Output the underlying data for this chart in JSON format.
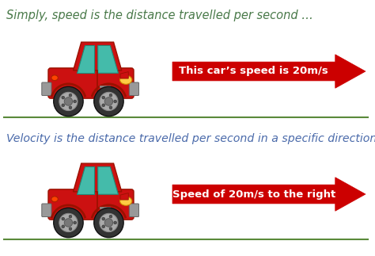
{
  "bg_color": "#ffffff",
  "top_text": "Simply, speed is the distance travelled per second …",
  "bottom_text": "Velocity is the distance travelled per second in a specific direction ..",
  "top_text_color": "#4a7a4a",
  "bottom_text_color": "#4a6aaa",
  "top_arrow_label": "This car’s speed is 20m/s",
  "bottom_arrow_label": "Speed of 20m/s to the right",
  "arrow_color": "#cc0000",
  "arrow_label_color": "#ffffff",
  "line_color": "#5a8a3a",
  "text_fontsize": 10.5,
  "arrow_fontsize": 9.5,
  "car_body_color": "#cc1111",
  "car_dark_color": "#991100",
  "car_window_color": "#44bbaa",
  "car_wheel_outer": "#333333",
  "car_wheel_rim": "#aaaaaa",
  "car_bumper_color": "#999999",
  "car_light_color": "#ffcc44"
}
